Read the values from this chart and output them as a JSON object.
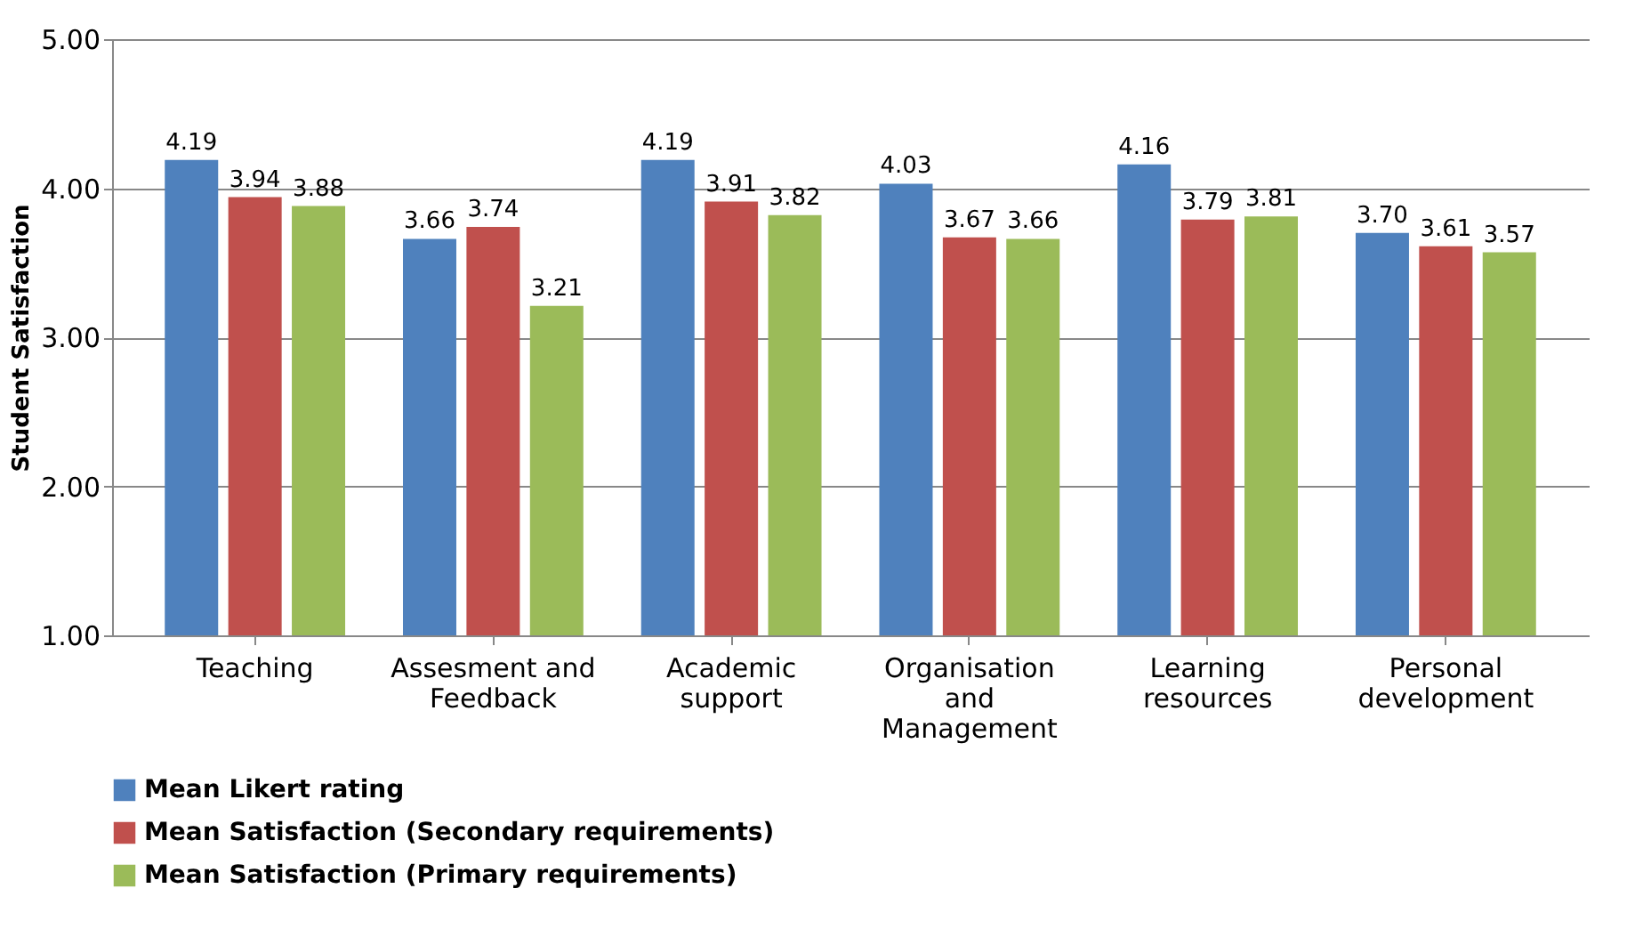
{
  "chart_data": {
    "type": "bar",
    "ylabel": "Student Satisfaction",
    "categories": [
      "Teaching",
      "Assesment and Feedback",
      "Academic support",
      "Organisation and Management",
      "Learning resources",
      "Personal development"
    ],
    "series": [
      {
        "name": "Mean Likert rating",
        "color": "#4f81bd",
        "values": [
          4.19,
          3.66,
          4.19,
          4.03,
          4.16,
          3.7
        ],
        "value_labels": [
          "4.19",
          "3.66",
          "4.19",
          "4.03",
          "4.16",
          "3.70"
        ]
      },
      {
        "name": "Mean Satisfaction (Secondary requirements)",
        "color": "#c0504d",
        "values": [
          3.94,
          3.74,
          3.91,
          3.67,
          3.79,
          3.61
        ],
        "value_labels": [
          "3.94",
          "3.74",
          "3.91",
          "3.67",
          "3.79",
          "3.61"
        ]
      },
      {
        "name": "Mean Satisfaction (Primary requirements)",
        "color": "#9bbb59",
        "values": [
          3.88,
          3.21,
          3.82,
          3.66,
          3.81,
          3.57
        ],
        "value_labels": [
          "3.88",
          "3.21",
          "3.82",
          "3.66",
          "3.81",
          "3.57"
        ]
      }
    ],
    "ylim": [
      1,
      5
    ],
    "yticks": [
      {
        "value": 1,
        "label": "1.00"
      },
      {
        "value": 2,
        "label": "2.00"
      },
      {
        "value": 3,
        "label": "3.00"
      },
      {
        "value": 4,
        "label": "4.00"
      },
      {
        "value": 5,
        "label": "5.00"
      }
    ],
    "grid": "y",
    "legend": "bottom"
  }
}
